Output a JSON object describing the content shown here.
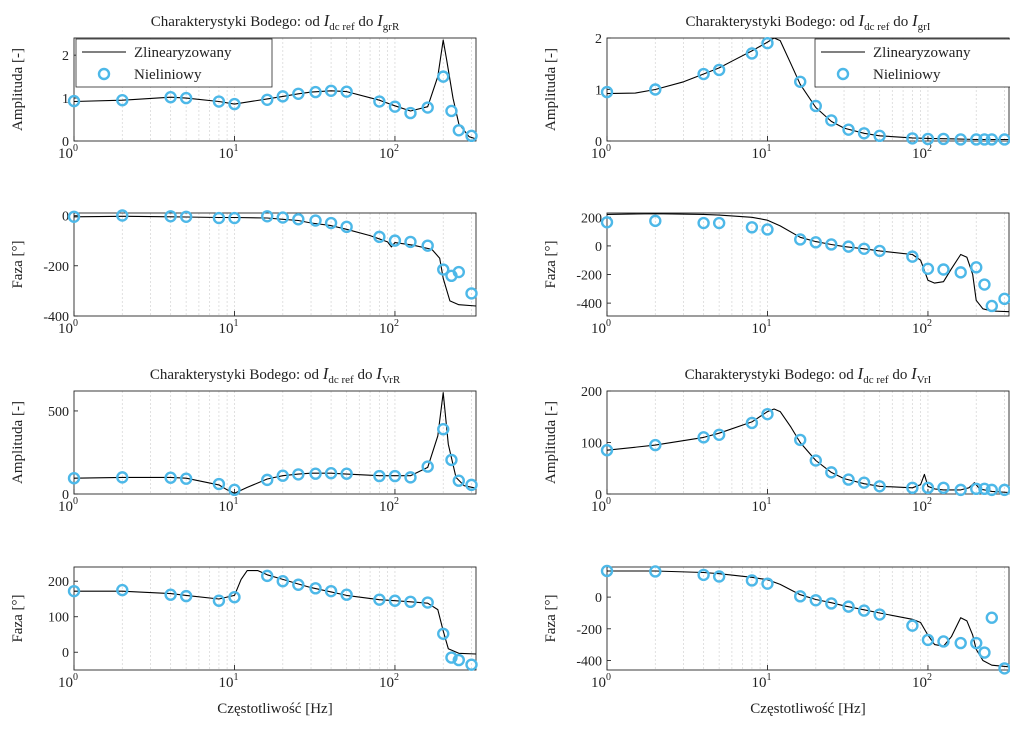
{
  "figure": {
    "legend": {
      "line_label": "Zlinearyzowany",
      "marker_label": "Nieliniowy"
    },
    "colors": {
      "line": "#000000",
      "marker": "#4db8e8",
      "grid": "#d9d9d9",
      "axis": "#262626"
    }
  },
  "chart_data": [
    {
      "id": "amp_grR",
      "type": "line",
      "xscale": "log",
      "xlim": [
        1,
        320
      ],
      "ylim": [
        0,
        2.4
      ],
      "yticks": [
        0,
        1,
        2
      ],
      "title": "Charakterystyki Bodego: od I_dc ref do I_grR",
      "title_parts": {
        "prefix": "Charakterystyki Bodego: od ",
        "in_main": "I",
        "in_sub": "dc ref",
        "mid": " do ",
        "out_main": "I",
        "out_sub": "grR"
      },
      "ylabel": "Amplituda [-]",
      "xlabel": "",
      "legend": "top-left",
      "series": [
        {
          "name": "Zlinearyzowany",
          "kind": "line",
          "x": [
            1,
            2,
            4,
            5,
            8,
            10,
            16,
            20,
            25,
            30,
            40,
            50,
            80,
            100,
            125,
            160,
            185,
            200,
            210,
            230,
            250,
            290,
            320
          ],
          "y": [
            0.92,
            0.95,
            1.02,
            1.0,
            0.92,
            0.86,
            0.98,
            1.04,
            1.1,
            1.14,
            1.17,
            1.15,
            0.95,
            0.82,
            0.7,
            0.8,
            1.5,
            2.35,
            1.9,
            1.0,
            0.4,
            0.1,
            0.05
          ]
        },
        {
          "name": "Nieliniowy",
          "kind": "marker",
          "x": [
            1,
            2,
            4,
            5,
            8,
            10,
            16,
            20,
            25,
            32,
            40,
            50,
            80,
            100,
            125,
            160,
            200,
            225,
            250,
            300
          ],
          "y": [
            0.93,
            0.95,
            1.02,
            1.0,
            0.92,
            0.86,
            0.96,
            1.04,
            1.1,
            1.14,
            1.17,
            1.15,
            0.92,
            0.8,
            0.65,
            0.78,
            1.5,
            0.7,
            0.25,
            0.12
          ]
        }
      ]
    },
    {
      "id": "phase_grR",
      "type": "line",
      "xscale": "log",
      "xlim": [
        1,
        320
      ],
      "ylim": [
        -400,
        10
      ],
      "yticks": [
        -400,
        -200,
        0
      ],
      "ylabel": "Faza [°]",
      "xlabel": "",
      "series": [
        {
          "name": "Zlinearyzowany",
          "kind": "line",
          "x": [
            1,
            2,
            4,
            5,
            8,
            10,
            16,
            20,
            25,
            30,
            40,
            50,
            70,
            90,
            95,
            100,
            130,
            170,
            190,
            200,
            220,
            250,
            320
          ],
          "y": [
            -5,
            -3,
            -5,
            -6,
            -8,
            -8,
            -10,
            -15,
            -20,
            -30,
            -40,
            -55,
            -80,
            -105,
            -125,
            -108,
            -118,
            -135,
            -170,
            -250,
            -340,
            -355,
            -360
          ]
        },
        {
          "name": "Nieliniowy",
          "kind": "marker",
          "x": [
            1,
            2,
            4,
            5,
            8,
            10,
            16,
            20,
            25,
            32,
            40,
            50,
            80,
            100,
            125,
            160,
            200,
            225,
            250,
            300
          ],
          "y": [
            -5,
            0,
            -3,
            -5,
            -10,
            -10,
            -3,
            -8,
            -15,
            -20,
            -30,
            -45,
            -85,
            -100,
            -105,
            -120,
            -215,
            -240,
            -225,
            -310
          ]
        }
      ]
    },
    {
      "id": "amp_VrR",
      "type": "line",
      "xscale": "log",
      "xlim": [
        1,
        320
      ],
      "ylim": [
        0,
        620
      ],
      "yticks": [
        0,
        500
      ],
      "title": "Charakterystyki Bodego: od I_dc ref do I_VrR",
      "title_parts": {
        "prefix": "Charakterystyki Bodego: od ",
        "in_main": "I",
        "in_sub": "dc ref",
        "mid": " do ",
        "out_main": "I",
        "out_sub": "VrR"
      },
      "ylabel": "Amplituda [-]",
      "xlabel": "",
      "series": [
        {
          "name": "Zlinearyzowany",
          "kind": "line",
          "x": [
            1,
            2,
            4,
            5,
            8,
            9,
            10,
            12,
            16,
            20,
            25,
            30,
            40,
            50,
            80,
            100,
            125,
            160,
            185,
            200,
            215,
            240,
            270,
            320
          ],
          "y": [
            95,
            100,
            100,
            95,
            55,
            25,
            5,
            40,
            90,
            110,
            120,
            125,
            125,
            120,
            110,
            110,
            110,
            160,
            350,
            610,
            300,
            100,
            50,
            35
          ]
        },
        {
          "name": "Nieliniowy",
          "kind": "marker",
          "x": [
            1,
            2,
            4,
            5,
            8,
            10,
            16,
            20,
            25,
            32,
            40,
            50,
            80,
            100,
            125,
            160,
            200,
            225,
            250,
            300
          ],
          "y": [
            95,
            100,
            98,
            92,
            60,
            25,
            85,
            110,
            118,
            122,
            125,
            122,
            108,
            108,
            100,
            165,
            390,
            205,
            80,
            55
          ]
        }
      ]
    },
    {
      "id": "phase_VrR",
      "type": "line",
      "xscale": "log",
      "xlim": [
        1,
        320
      ],
      "ylim": [
        -50,
        240
      ],
      "yticks": [
        0,
        100,
        200
      ],
      "ylabel": "Faza [°]",
      "xlabel": "Częstotliwość [Hz]",
      "series": [
        {
          "name": "Zlinearyzowany",
          "kind": "line",
          "x": [
            1,
            2,
            4,
            5,
            8,
            10,
            11,
            12,
            14,
            16,
            20,
            25,
            30,
            40,
            50,
            80,
            100,
            125,
            160,
            185,
            200,
            215,
            250,
            320
          ],
          "y": [
            172,
            172,
            165,
            160,
            150,
            160,
            205,
            230,
            230,
            218,
            205,
            192,
            182,
            170,
            160,
            148,
            145,
            142,
            138,
            120,
            60,
            10,
            -3,
            -5
          ]
        },
        {
          "name": "Nieliniowy",
          "kind": "marker",
          "x": [
            1,
            2,
            4,
            5,
            8,
            10,
            16,
            20,
            25,
            32,
            40,
            50,
            80,
            100,
            125,
            160,
            200,
            225,
            250,
            300
          ],
          "y": [
            172,
            175,
            162,
            158,
            145,
            155,
            215,
            200,
            190,
            180,
            172,
            162,
            148,
            145,
            142,
            140,
            52,
            -15,
            -22,
            -35
          ]
        }
      ]
    },
    {
      "id": "amp_grI",
      "type": "line",
      "xscale": "log",
      "xlim": [
        1,
        320
      ],
      "ylim": [
        0,
        2.0
      ],
      "yticks": [
        0,
        1,
        2
      ],
      "title": "Charakterystyki Bodego: od I_dc ref do I_grI",
      "title_parts": {
        "prefix": "Charakterystyki Bodego: od ",
        "in_main": "I",
        "in_sub": "dc ref",
        "mid": " do ",
        "out_main": "I",
        "out_sub": "grI"
      },
      "ylabel": "Amplituda [-]",
      "xlabel": "",
      "legend": "top-right",
      "series": [
        {
          "name": "Zlinearyzowany",
          "kind": "line",
          "x": [
            1,
            1.5,
            2,
            3,
            4,
            5,
            6,
            8,
            10,
            11,
            12,
            14,
            16,
            20,
            25,
            30,
            40,
            50,
            80,
            100,
            150,
            200,
            320
          ],
          "y": [
            0.92,
            0.93,
            1.0,
            1.15,
            1.3,
            1.42,
            1.55,
            1.75,
            1.92,
            2.0,
            1.95,
            1.5,
            1.1,
            0.65,
            0.38,
            0.25,
            0.15,
            0.1,
            0.06,
            0.05,
            0.04,
            0.03,
            0.03
          ]
        },
        {
          "name": "Nieliniowy",
          "kind": "marker",
          "x": [
            1,
            2,
            4,
            5,
            8,
            10,
            16,
            20,
            25,
            32,
            40,
            50,
            80,
            100,
            125,
            160,
            200,
            225,
            250,
            300
          ],
          "y": [
            0.95,
            1.0,
            1.3,
            1.38,
            1.7,
            1.9,
            1.15,
            0.68,
            0.4,
            0.22,
            0.15,
            0.1,
            0.05,
            0.04,
            0.04,
            0.03,
            0.03,
            0.03,
            0.03,
            0.03
          ]
        }
      ]
    },
    {
      "id": "phase_grI",
      "type": "line",
      "xscale": "log",
      "xlim": [
        1,
        320
      ],
      "ylim": [
        -490,
        230
      ],
      "yticks": [
        -400,
        -200,
        0,
        200
      ],
      "ylabel": "Faza [°]",
      "xlabel": "",
      "series": [
        {
          "name": "Zlinearyzowany",
          "kind": "line",
          "x": [
            1,
            2,
            4,
            5,
            8,
            10,
            12,
            16,
            20,
            25,
            30,
            40,
            50,
            80,
            90,
            100,
            110,
            125,
            140,
            160,
            175,
            190,
            200,
            220,
            250,
            320
          ],
          "y": [
            220,
            225,
            220,
            215,
            200,
            180,
            140,
            60,
            30,
            10,
            -5,
            -20,
            -35,
            -60,
            -100,
            -240,
            -260,
            -250,
            -160,
            -60,
            -80,
            -200,
            -380,
            -440,
            -455,
            -460
          ]
        },
        {
          "name": "Nieliniowy",
          "kind": "marker",
          "x": [
            1,
            2,
            4,
            5,
            8,
            10,
            16,
            20,
            25,
            32,
            40,
            50,
            80,
            100,
            125,
            160,
            200,
            225,
            250,
            300
          ],
          "y": [
            165,
            175,
            160,
            160,
            130,
            115,
            45,
            25,
            10,
            -5,
            -20,
            -35,
            -75,
            -160,
            -165,
            -185,
            -150,
            -270,
            -420,
            -370
          ]
        }
      ]
    },
    {
      "id": "amp_VrI",
      "type": "line",
      "xscale": "log",
      "xlim": [
        1,
        320
      ],
      "ylim": [
        0,
        200
      ],
      "yticks": [
        0,
        100,
        200
      ],
      "title": "Charakterystyki Bodego: od I_dc ref do I_VrI",
      "title_parts": {
        "prefix": "Charakterystyki Bodego: od ",
        "in_main": "I",
        "in_sub": "dc ref",
        "mid": " do ",
        "out_main": "I",
        "out_sub": "VrI"
      },
      "ylabel": "Amplituda [-]",
      "xlabel": "",
      "series": [
        {
          "name": "Zlinearyzowany",
          "kind": "line",
          "x": [
            1,
            2,
            4,
            5,
            8,
            10,
            11,
            12,
            14,
            16,
            20,
            25,
            30,
            40,
            50,
            80,
            90,
            95,
            100,
            110,
            125,
            160,
            180,
            195,
            210,
            250,
            320
          ],
          "y": [
            85,
            95,
            110,
            118,
            140,
            160,
            165,
            160,
            130,
            100,
            65,
            42,
            30,
            20,
            15,
            12,
            18,
            38,
            15,
            10,
            8,
            8,
            12,
            22,
            10,
            5,
            3
          ]
        },
        {
          "name": "Nieliniowy",
          "kind": "marker",
          "x": [
            1,
            2,
            4,
            5,
            8,
            10,
            16,
            20,
            25,
            32,
            40,
            50,
            80,
            100,
            125,
            160,
            200,
            225,
            250,
            300
          ],
          "y": [
            85,
            95,
            110,
            115,
            138,
            155,
            105,
            65,
            42,
            28,
            22,
            15,
            12,
            12,
            12,
            8,
            10,
            10,
            8,
            8
          ]
        }
      ]
    },
    {
      "id": "phase_VrI",
      "type": "line",
      "xscale": "log",
      "xlim": [
        1,
        320
      ],
      "ylim": [
        -460,
        190
      ],
      "yticks": [
        -400,
        -200,
        0
      ],
      "ylabel": "Faza [°]",
      "xlabel": "Częstotliwość [Hz]",
      "series": [
        {
          "name": "Zlinearyzowany",
          "kind": "line",
          "x": [
            1,
            2,
            4,
            5,
            8,
            10,
            12,
            16,
            20,
            25,
            30,
            40,
            50,
            80,
            90,
            100,
            110,
            125,
            140,
            160,
            175,
            190,
            200,
            220,
            250,
            320
          ],
          "y": [
            165,
            165,
            155,
            148,
            125,
            110,
            80,
            15,
            -15,
            -35,
            -55,
            -80,
            -100,
            -140,
            -160,
            -240,
            -300,
            -310,
            -250,
            -130,
            -150,
            -240,
            -330,
            -400,
            -430,
            -440
          ]
        },
        {
          "name": "Nieliniowy",
          "kind": "marker",
          "x": [
            1,
            2,
            4,
            5,
            8,
            10,
            16,
            20,
            25,
            32,
            40,
            50,
            80,
            100,
            125,
            160,
            200,
            225,
            250,
            300
          ],
          "y": [
            165,
            162,
            140,
            130,
            105,
            85,
            5,
            -20,
            -40,
            -60,
            -85,
            -110,
            -180,
            -270,
            -280,
            -290,
            -290,
            -350,
            -130,
            -450
          ]
        }
      ]
    }
  ]
}
